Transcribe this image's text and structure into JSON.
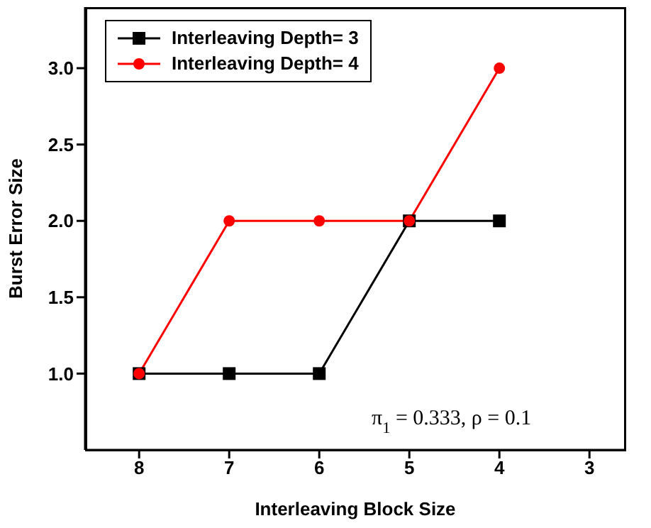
{
  "chart_data": {
    "type": "line",
    "xlabel": "Interleaving Block Size",
    "ylabel": "Burst Error Size",
    "x": [
      8,
      7,
      6,
      5,
      4
    ],
    "series": [
      {
        "name": "Interleaving Depth= 3",
        "color": "#000000",
        "values": [
          1,
          1,
          1,
          2,
          2
        ],
        "marker": "square"
      },
      {
        "name": "Interleaving Depth= 4",
        "color": "#ff0000",
        "values": [
          1,
          2,
          2,
          2,
          3
        ],
        "marker": "circle"
      }
    ],
    "xlim": [
      8.6,
      2.6
    ],
    "xticks": [
      8,
      7,
      6,
      5,
      4,
      3
    ],
    "ylim": [
      0.5,
      3.4
    ],
    "yticks": [
      {
        "value": 1,
        "label": "1.0"
      },
      {
        "value": 1.5,
        "label": "1.5"
      },
      {
        "value": 2,
        "label": "2.0"
      },
      {
        "value": 2.5,
        "label": "2.5"
      },
      {
        "value": 3,
        "label": "3.0"
      }
    ],
    "grid": false,
    "legend": "top left",
    "line_style": "solid",
    "annotations": [
      "π$_{1}$= 0.333, ρ = 0.1"
    ]
  }
}
